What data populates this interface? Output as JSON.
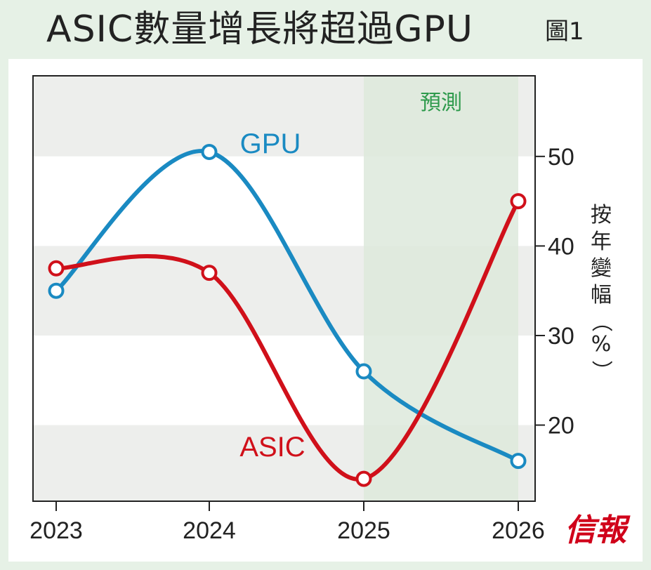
{
  "header": {
    "title": "ASIC數量增長將超過GPU",
    "figure_label": "圖1"
  },
  "brand": {
    "name": "信報",
    "color": "#d0001a"
  },
  "colors": {
    "gpu": "#1a8ac2",
    "asic": "#d0101a",
    "forecast_band": "#dde9dc",
    "forecast_label": "#2e9a4c",
    "band_light": "#edeeec"
  },
  "chart_data": {
    "type": "line",
    "x": [
      "2023",
      "2024",
      "2025",
      "2026"
    ],
    "series": [
      {
        "name": "GPU",
        "values": [
          35,
          50.5,
          26,
          16
        ]
      },
      {
        "name": "ASIC",
        "values": [
          37.5,
          37,
          14,
          45
        ]
      }
    ],
    "ylabel": "按年變幅（%）",
    "y_axis_position": "right",
    "yticks": [
      20,
      30,
      40,
      50
    ],
    "ylim": [
      11.5,
      59
    ],
    "forecast_region": {
      "from": "2025",
      "to": "2026",
      "label": "預測"
    },
    "legend": "inline labels next to each line",
    "grid": false
  }
}
